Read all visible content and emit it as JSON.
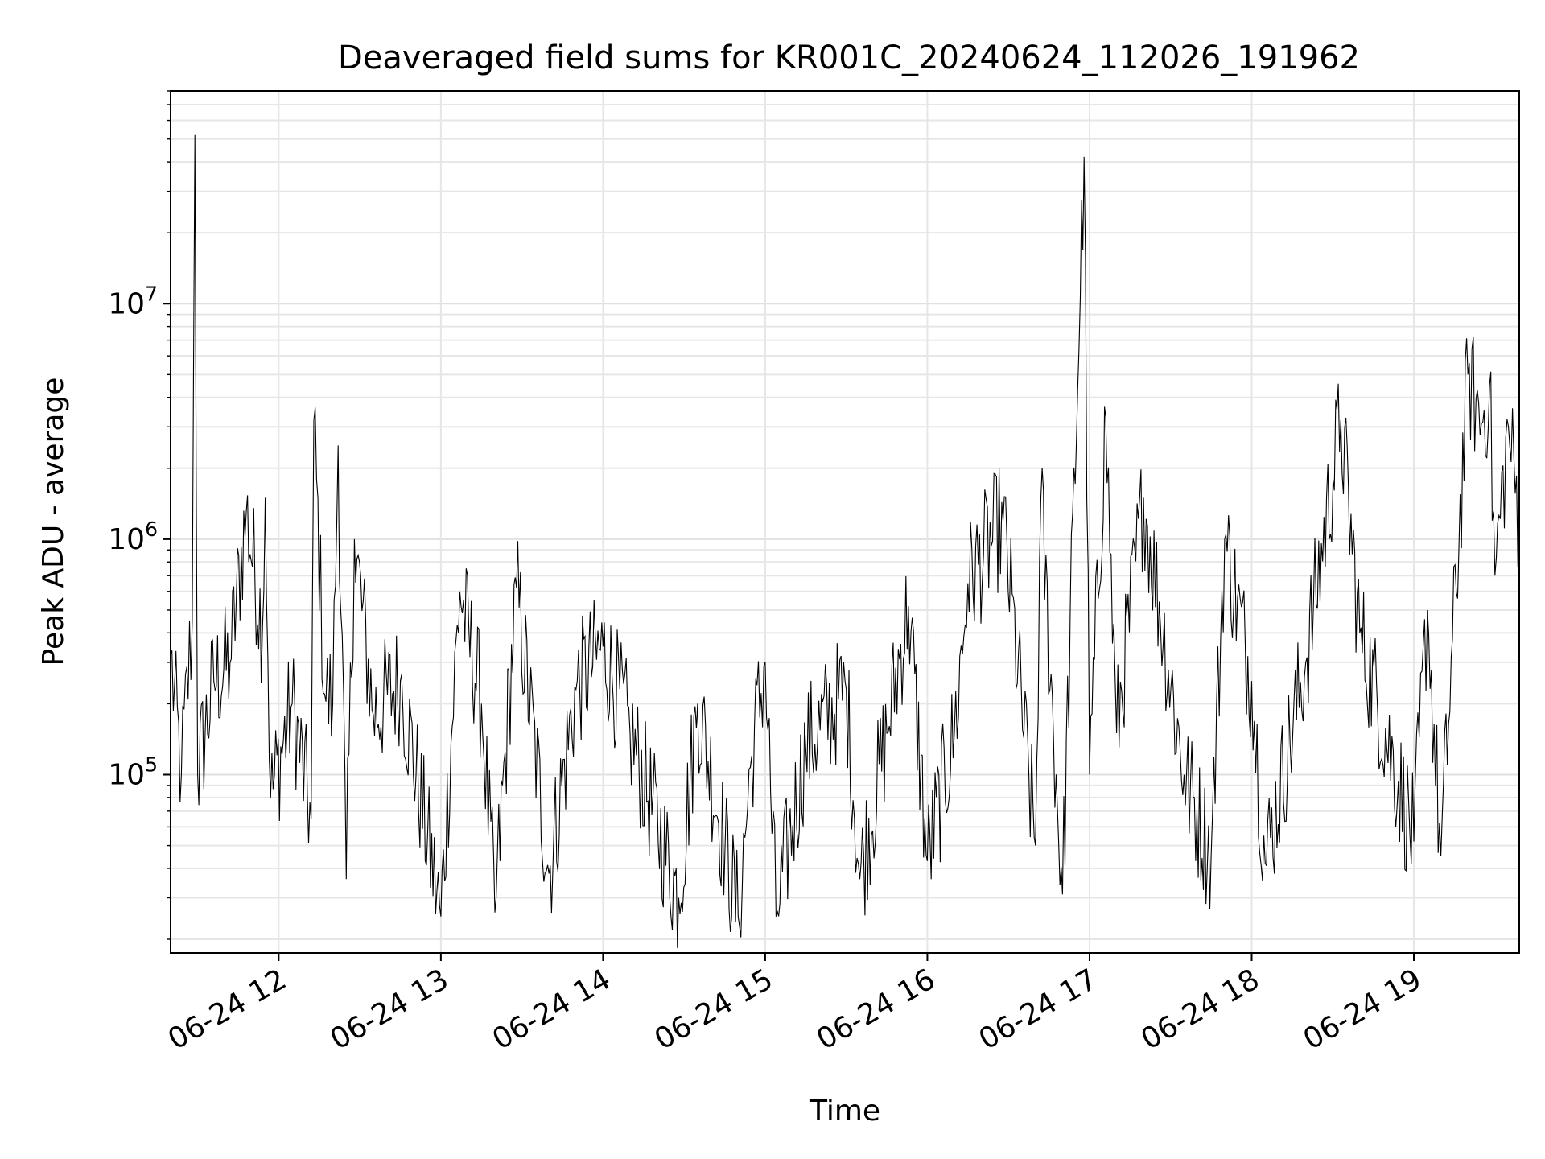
{
  "chart_data": {
    "type": "line",
    "title": "Deaveraged field sums for KR001C_20240624_112026_191962",
    "xlabel": "Time",
    "ylabel": "Peak ADU - average",
    "x_range": [
      "2024-06-24 11:20",
      "2024-06-24 19:39"
    ],
    "ylim": [
      17500,
      80000000
    ],
    "y_scale": "log",
    "grid": true,
    "x_ticks": [
      {
        "t": "2024-06-24 12:00",
        "label": "06-24 12"
      },
      {
        "t": "2024-06-24 13:00",
        "label": "06-24 13"
      },
      {
        "t": "2024-06-24 14:00",
        "label": "06-24 14"
      },
      {
        "t": "2024-06-24 15:00",
        "label": "06-24 15"
      },
      {
        "t": "2024-06-24 16:00",
        "label": "06-24 16"
      },
      {
        "t": "2024-06-24 17:00",
        "label": "06-24 17"
      },
      {
        "t": "2024-06-24 18:00",
        "label": "06-24 18"
      },
      {
        "t": "2024-06-24 19:00",
        "label": "06-24 19"
      }
    ],
    "y_ticks": [
      {
        "value": 100000,
        "base": "10",
        "exp": "5"
      },
      {
        "value": 1000000,
        "base": "10",
        "exp": "6"
      },
      {
        "value": 10000000,
        "base": "10",
        "exp": "7"
      }
    ],
    "series": [
      {
        "color": "#000000",
        "points": [
          [
            "2024-06-24 11:20",
            320000
          ],
          [
            "2024-06-24 11:24",
            100000
          ],
          [
            "2024-06-24 11:28",
            450000
          ],
          [
            "2024-06-24 11:29",
            52000000
          ],
          [
            "2024-06-24 11:30",
            100000
          ],
          [
            "2024-06-24 11:36",
            250000
          ],
          [
            "2024-06-24 11:42",
            300000
          ],
          [
            "2024-06-24 11:48",
            1300000
          ],
          [
            "2024-06-24 11:54",
            420000
          ],
          [
            "2024-06-24 11:55",
            1500000
          ],
          [
            "2024-06-24 11:57",
            80000
          ],
          [
            "2024-06-24 12:05",
            200000
          ],
          [
            "2024-06-24 12:12",
            65000
          ],
          [
            "2024-06-24 12:13",
            3200000
          ],
          [
            "2024-06-24 12:17",
            220000
          ],
          [
            "2024-06-24 12:20",
            200000
          ],
          [
            "2024-06-24 12:22",
            2500000
          ],
          [
            "2024-06-24 12:25",
            36000
          ],
          [
            "2024-06-24 12:28",
            1000000
          ],
          [
            "2024-06-24 12:35",
            180000
          ],
          [
            "2024-06-24 12:45",
            250000
          ],
          [
            "2024-06-24 13:00",
            25000
          ],
          [
            "2024-06-24 13:07",
            600000
          ],
          [
            "2024-06-24 13:15",
            200000
          ],
          [
            "2024-06-24 13:20",
            26000
          ],
          [
            "2024-06-24 13:28",
            620000
          ],
          [
            "2024-06-24 13:40",
            38000
          ],
          [
            "2024-06-24 13:50",
            230000
          ],
          [
            "2024-06-24 14:00",
            350000
          ],
          [
            "2024-06-24 14:10",
            150000
          ],
          [
            "2024-06-24 14:28",
            30000
          ],
          [
            "2024-06-24 14:35",
            200000
          ],
          [
            "2024-06-24 14:50",
            25000
          ],
          [
            "2024-06-24 14:55",
            120000
          ],
          [
            "2024-06-24 15:00",
            300000
          ],
          [
            "2024-06-24 15:04",
            25000
          ],
          [
            "2024-06-24 15:15",
            130000
          ],
          [
            "2024-06-24 15:30",
            230000
          ],
          [
            "2024-06-24 15:35",
            36000
          ],
          [
            "2024-06-24 15:45",
            150000
          ],
          [
            "2024-06-24 15:53",
            520000
          ],
          [
            "2024-06-24 16:00",
            43000
          ],
          [
            "2024-06-24 16:10",
            150000
          ],
          [
            "2024-06-24 16:15",
            650000
          ],
          [
            "2024-06-24 16:28",
            1200000
          ],
          [
            "2024-06-24 16:40",
            50000
          ],
          [
            "2024-06-24 16:42",
            1500000
          ],
          [
            "2024-06-24 16:50",
            31000
          ],
          [
            "2024-06-24 16:58",
            42000000
          ],
          [
            "2024-06-24 17:00",
            100000
          ],
          [
            "2024-06-24 17:06",
            3300000
          ],
          [
            "2024-06-24 17:10",
            150000
          ],
          [
            "2024-06-24 17:20",
            1500000
          ],
          [
            "2024-06-24 17:35",
            100000
          ],
          [
            "2024-06-24 17:45",
            45000
          ],
          [
            "2024-06-24 17:50",
            1000000
          ],
          [
            "2024-06-24 18:00",
            250000
          ],
          [
            "2024-06-24 18:05",
            42000
          ],
          [
            "2024-06-24 18:20",
            300000
          ],
          [
            "2024-06-24 18:33",
            3200000
          ],
          [
            "2024-06-24 18:40",
            400000
          ],
          [
            "2024-06-24 19:00",
            52000
          ],
          [
            "2024-06-24 19:05",
            500000
          ],
          [
            "2024-06-24 19:10",
            45000
          ],
          [
            "2024-06-24 19:20",
            5000000
          ],
          [
            "2024-06-24 19:25",
            3100000
          ],
          [
            "2024-06-24 19:28",
            4500000
          ],
          [
            "2024-06-24 19:30",
            700000
          ],
          [
            "2024-06-24 19:35",
            3000000
          ],
          [
            "2024-06-24 19:39",
            1200000
          ]
        ]
      }
    ]
  }
}
